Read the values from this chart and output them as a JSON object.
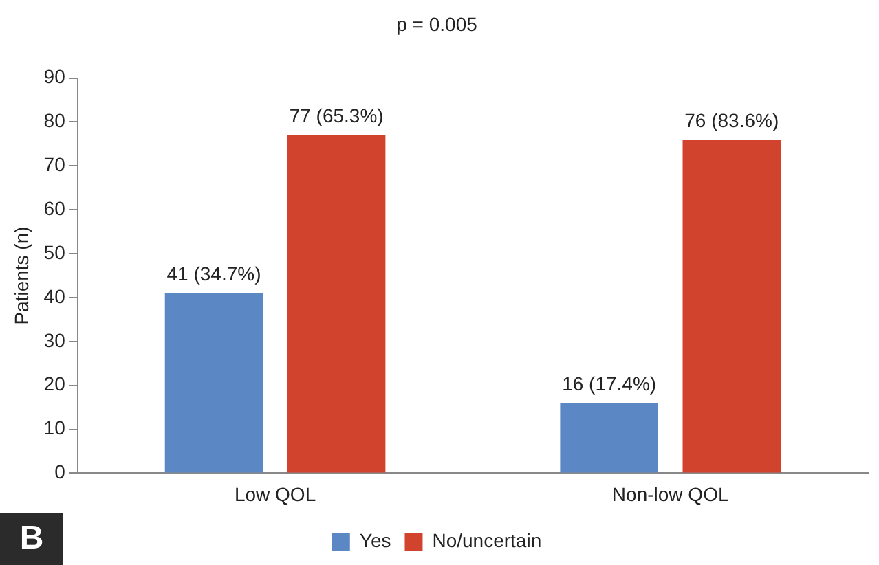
{
  "chart_data": {
    "type": "bar",
    "title": "p = 0.005",
    "ylabel": "Patients (n)",
    "categories": [
      "Low QOL",
      "Non-low QOL"
    ],
    "series": [
      {
        "name": "Yes",
        "color": "#5b87c5",
        "values": [
          41,
          16
        ],
        "value_labels": [
          "41 (34.7%)",
          "16 (17.4%)"
        ]
      },
      {
        "name": "No/uncertain",
        "color": "#d2432e",
        "values": [
          77,
          76
        ],
        "value_labels": [
          "77 (65.3%)",
          "76 (83.6%)"
        ]
      }
    ],
    "ylim": [
      0,
      90
    ],
    "yticks": [
      0,
      10,
      20,
      30,
      40,
      50,
      60,
      70,
      80,
      90
    ],
    "grid": false,
    "legend": "bottom",
    "annotations": [
      "B"
    ]
  }
}
